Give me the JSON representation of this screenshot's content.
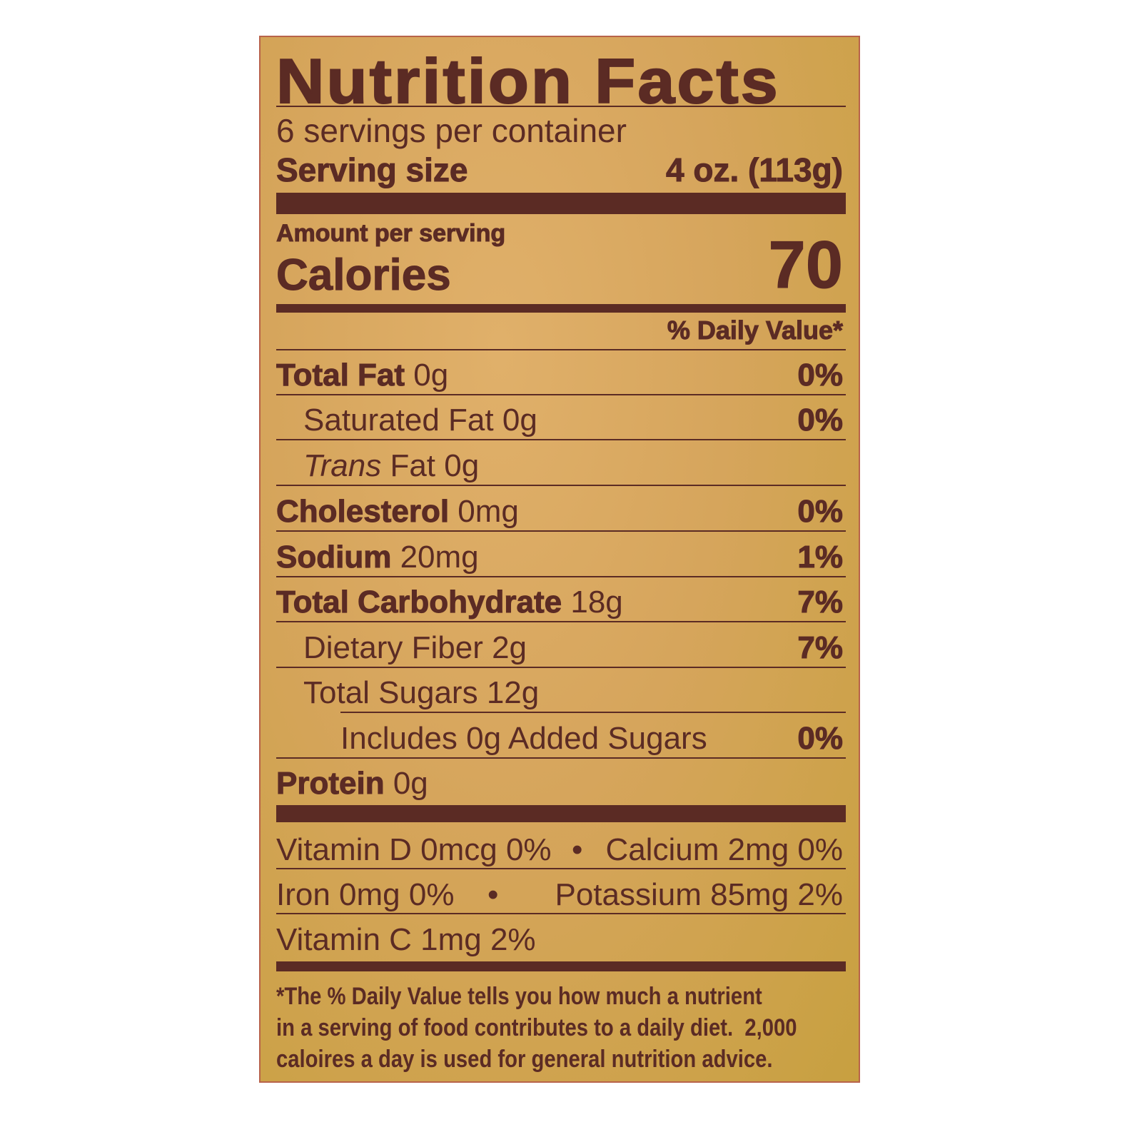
{
  "title": "Nutrition Facts",
  "servings_per_container": "6 servings per container",
  "serving_size_label": "Serving size",
  "serving_size_value": "4 oz. (113g)",
  "amount_per_serving": "Amount per serving",
  "calories_label": "Calories",
  "calories_value": "70",
  "daily_value_header": "% Daily Value*",
  "nutrients": [
    {
      "name": "Total Fat",
      "amount": "0g",
      "dv": "0%"
    },
    {
      "name": "Saturated Fat",
      "amount": "0g",
      "dv": "0%"
    },
    {
      "name_italic": "Trans",
      "name": "Fat",
      "amount": "0g"
    },
    {
      "name": "Cholesterol",
      "amount": "0mg",
      "dv": "0%"
    },
    {
      "name": "Sodium",
      "amount": "20mg",
      "dv": "1%"
    },
    {
      "name": "Total Carbohydrate",
      "amount": "18g",
      "dv": "7%"
    },
    {
      "name": "Dietary Fiber",
      "amount": "2g",
      "dv": "7%"
    },
    {
      "name": "Total Sugars",
      "amount": "12g"
    },
    {
      "name": "Includes 0g Added Sugars",
      "dv": "0%"
    },
    {
      "name": "Protein",
      "amount": "0g"
    }
  ],
  "micronutrients": [
    {
      "text": "Vitamin D 0mcg 0%"
    },
    {
      "text": "Calcium 2mg 0%"
    },
    {
      "text": "Iron 0mg 0%"
    },
    {
      "text": "Potassium 85mg 2%"
    },
    {
      "text": "Vitamin C 1mg 2%"
    }
  ],
  "bullet": "•",
  "footnote": [
    "*The % Daily Value tells you how much a nutrient",
    "in a serving of food contributes to a daily diet.  2,000",
    "caloires a day is used for general nutrition advice."
  ],
  "colors": {
    "ink": "#5b2b24",
    "background": "#d6a55c"
  }
}
